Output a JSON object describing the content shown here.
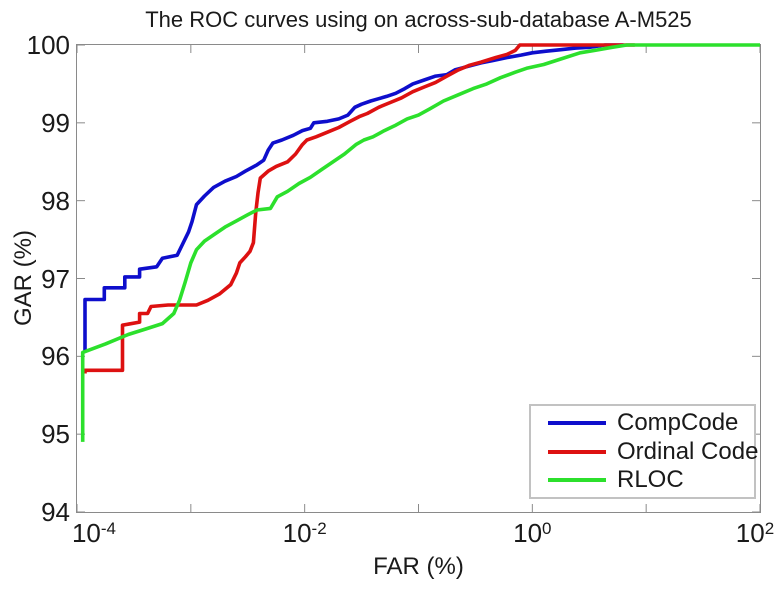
{
  "title": "The ROC curves using on across-sub-database A-M525",
  "axes": {
    "xlabel": "FAR (%)",
    "ylabel": "GAR (%)",
    "y_tick_labels": [
      "100",
      "99",
      "98",
      "97",
      "96",
      "95",
      "94"
    ],
    "x_tick_labels": [
      {
        "base": "10",
        "exp": "-4"
      },
      {
        "base": "10",
        "exp": "-2"
      },
      {
        "base": "10",
        "exp": "0"
      },
      {
        "base": "10",
        "exp": "2"
      }
    ]
  },
  "legend": {
    "items": [
      {
        "label": "CompCode",
        "color": "#0e0ecc"
      },
      {
        "label": "Ordinal Code",
        "color": "#dd1111"
      },
      {
        "label": "RLOC",
        "color": "#2ce02c"
      }
    ]
  },
  "colors": {
    "axis": "#8a8a8a",
    "text": "#1a1a1a",
    "background": "#ffffff"
  },
  "chart_data": {
    "type": "line",
    "title": "The ROC curves using on across-sub-database A-M525",
    "xlabel": "FAR (%)",
    "ylabel": "GAR (%)",
    "x_scale": "log10",
    "xlim_log10": [
      -4,
      2
    ],
    "ylim": [
      94,
      100
    ],
    "x_tick_exponents": [
      -4,
      -3,
      -2,
      -1,
      0,
      1,
      2
    ],
    "x_labeled_exponents": [
      -4,
      -2,
      0,
      2
    ],
    "y_ticks": [
      94,
      95,
      96,
      97,
      98,
      99,
      100
    ],
    "grid": false,
    "legend_position": "lower right",
    "line_width": 3.6,
    "series": [
      {
        "name": "CompCode",
        "color": "#0e0ecc",
        "points_log10far_gar": [
          [
            -3.93,
            96.05
          ],
          [
            -3.93,
            96.73
          ],
          [
            -3.76,
            96.73
          ],
          [
            -3.76,
            96.88
          ],
          [
            -3.58,
            96.88
          ],
          [
            -3.58,
            97.02
          ],
          [
            -3.45,
            97.02
          ],
          [
            -3.45,
            97.12
          ],
          [
            -3.3,
            97.15
          ],
          [
            -3.25,
            97.26
          ],
          [
            -3.12,
            97.3
          ],
          [
            -3.07,
            97.45
          ],
          [
            -3.02,
            97.6
          ],
          [
            -2.99,
            97.73
          ],
          [
            -2.95,
            97.95
          ],
          [
            -2.88,
            98.06
          ],
          [
            -2.8,
            98.17
          ],
          [
            -2.7,
            98.25
          ],
          [
            -2.6,
            98.31
          ],
          [
            -2.52,
            98.38
          ],
          [
            -2.42,
            98.46
          ],
          [
            -2.36,
            98.52
          ],
          [
            -2.32,
            98.65
          ],
          [
            -2.28,
            98.74
          ],
          [
            -2.2,
            98.78
          ],
          [
            -2.1,
            98.84
          ],
          [
            -2.02,
            98.9
          ],
          [
            -1.95,
            98.93
          ],
          [
            -1.92,
            99.0
          ],
          [
            -1.8,
            99.02
          ],
          [
            -1.7,
            99.05
          ],
          [
            -1.62,
            99.1
          ],
          [
            -1.56,
            99.2
          ],
          [
            -1.5,
            99.24
          ],
          [
            -1.42,
            99.28
          ],
          [
            -1.35,
            99.31
          ],
          [
            -1.28,
            99.34
          ],
          [
            -1.2,
            99.38
          ],
          [
            -1.12,
            99.44
          ],
          [
            -1.05,
            99.5
          ],
          [
            -0.95,
            99.55
          ],
          [
            -0.85,
            99.6
          ],
          [
            -0.75,
            99.62
          ],
          [
            -0.68,
            99.68
          ],
          [
            -0.58,
            99.72
          ],
          [
            -0.45,
            99.77
          ],
          [
            -0.35,
            99.8
          ],
          [
            -0.22,
            99.84
          ],
          [
            -0.1,
            99.87
          ],
          [
            0.0,
            99.9
          ],
          [
            0.12,
            99.92
          ],
          [
            0.25,
            99.94
          ],
          [
            0.38,
            99.96
          ],
          [
            0.5,
            99.97
          ],
          [
            0.64,
            100.0
          ],
          [
            0.8,
            100.0
          ]
        ]
      },
      {
        "name": "Ordinal Code",
        "color": "#dd1111",
        "points_log10far_gar": [
          [
            -3.93,
            95.78
          ],
          [
            -3.93,
            95.82
          ],
          [
            -3.6,
            95.82
          ],
          [
            -3.6,
            96.4
          ],
          [
            -3.45,
            96.44
          ],
          [
            -3.45,
            96.55
          ],
          [
            -3.38,
            96.55
          ],
          [
            -3.35,
            96.64
          ],
          [
            -3.2,
            96.66
          ],
          [
            -2.95,
            96.66
          ],
          [
            -2.85,
            96.72
          ],
          [
            -2.75,
            96.8
          ],
          [
            -2.65,
            96.92
          ],
          [
            -2.6,
            97.07
          ],
          [
            -2.57,
            97.2
          ],
          [
            -2.52,
            97.28
          ],
          [
            -2.48,
            97.35
          ],
          [
            -2.45,
            97.46
          ],
          [
            -2.43,
            97.84
          ],
          [
            -2.41,
            98.1
          ],
          [
            -2.39,
            98.29
          ],
          [
            -2.32,
            98.38
          ],
          [
            -2.25,
            98.44
          ],
          [
            -2.15,
            98.5
          ],
          [
            -2.08,
            98.6
          ],
          [
            -2.02,
            98.72
          ],
          [
            -1.98,
            98.78
          ],
          [
            -1.9,
            98.82
          ],
          [
            -1.8,
            98.88
          ],
          [
            -1.7,
            98.94
          ],
          [
            -1.6,
            99.02
          ],
          [
            -1.52,
            99.08
          ],
          [
            -1.45,
            99.12
          ],
          [
            -1.35,
            99.2
          ],
          [
            -1.25,
            99.26
          ],
          [
            -1.15,
            99.32
          ],
          [
            -1.05,
            99.4
          ],
          [
            -0.95,
            99.46
          ],
          [
            -0.85,
            99.52
          ],
          [
            -0.75,
            99.6
          ],
          [
            -0.65,
            99.68
          ],
          [
            -0.55,
            99.74
          ],
          [
            -0.45,
            99.78
          ],
          [
            -0.32,
            99.84
          ],
          [
            -0.22,
            99.88
          ],
          [
            -0.15,
            99.93
          ],
          [
            -0.11,
            100.0
          ],
          [
            0.9,
            100.0
          ]
        ]
      },
      {
        "name": "RLOC",
        "color": "#2ce02c",
        "points_log10far_gar": [
          [
            -3.95,
            94.9
          ],
          [
            -3.95,
            96.05
          ],
          [
            -3.75,
            96.16
          ],
          [
            -3.55,
            96.28
          ],
          [
            -3.4,
            96.35
          ],
          [
            -3.25,
            96.42
          ],
          [
            -3.15,
            96.55
          ],
          [
            -3.1,
            96.72
          ],
          [
            -3.05,
            96.95
          ],
          [
            -3.0,
            97.2
          ],
          [
            -2.95,
            97.37
          ],
          [
            -2.88,
            97.48
          ],
          [
            -2.8,
            97.56
          ],
          [
            -2.7,
            97.66
          ],
          [
            -2.6,
            97.74
          ],
          [
            -2.5,
            97.82
          ],
          [
            -2.42,
            97.88
          ],
          [
            -2.3,
            97.9
          ],
          [
            -2.24,
            98.05
          ],
          [
            -2.15,
            98.12
          ],
          [
            -2.05,
            98.22
          ],
          [
            -1.95,
            98.3
          ],
          [
            -1.85,
            98.4
          ],
          [
            -1.75,
            98.5
          ],
          [
            -1.65,
            98.6
          ],
          [
            -1.55,
            98.72
          ],
          [
            -1.48,
            98.78
          ],
          [
            -1.4,
            98.82
          ],
          [
            -1.3,
            98.9
          ],
          [
            -1.2,
            98.97
          ],
          [
            -1.1,
            99.05
          ],
          [
            -1.0,
            99.1
          ],
          [
            -0.9,
            99.18
          ],
          [
            -0.78,
            99.28
          ],
          [
            -0.65,
            99.36
          ],
          [
            -0.52,
            99.44
          ],
          [
            -0.4,
            99.5
          ],
          [
            -0.28,
            99.58
          ],
          [
            -0.15,
            99.65
          ],
          [
            -0.05,
            99.7
          ],
          [
            0.1,
            99.75
          ],
          [
            0.25,
            99.82
          ],
          [
            0.42,
            99.9
          ],
          [
            0.55,
            99.93
          ],
          [
            0.7,
            99.97
          ],
          [
            0.83,
            100.0
          ],
          [
            2.0,
            100.0
          ]
        ]
      }
    ]
  }
}
